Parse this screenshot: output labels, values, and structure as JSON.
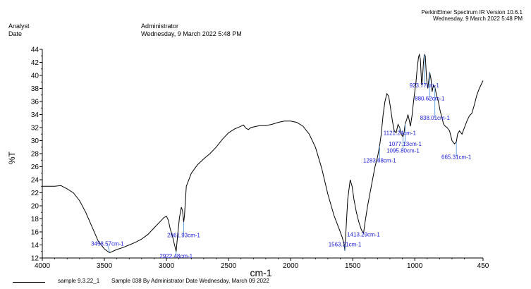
{
  "header": {
    "software": "PerkinElmer Spectrum IR Version 10.6.1",
    "timestamp": "Wednesday, 9 March 2022 5:48 PM",
    "analyst_label": "Analyst",
    "analyst_value": "Administrator",
    "date_label": "Date",
    "date_value": "Wednesday, 9 March 2022 5:48 PM"
  },
  "legend": {
    "sample_name": "sample 9.3.22_1",
    "description": "Sample 038 By Administrator Date Wednesday, March 09 2022"
  },
  "colors": {
    "line": "#000000",
    "annotation": "#1a1ad8",
    "leader": "#4a90d9"
  },
  "chart_data": {
    "type": "line",
    "xlabel": "cm-1",
    "ylabel": "%T",
    "xlim": [
      4000,
      450
    ],
    "ylim": [
      12,
      44
    ],
    "x_reversed": true,
    "xticks": [
      4000,
      3500,
      3000,
      2500,
      2000,
      1500,
      1000,
      450
    ],
    "yticks": [
      12,
      14,
      16,
      18,
      20,
      22,
      24,
      26,
      28,
      30,
      32,
      34,
      36,
      38,
      40,
      42,
      44
    ],
    "grid": false,
    "series": [
      {
        "name": "sample 9.3.22_1",
        "points": [
          [
            4000,
            23.0
          ],
          [
            3900,
            23.0
          ],
          [
            3850,
            23.1
          ],
          [
            3800,
            22.6
          ],
          [
            3750,
            22.0
          ],
          [
            3700,
            20.8
          ],
          [
            3650,
            19.0
          ],
          [
            3600,
            16.8
          ],
          [
            3550,
            14.6
          ],
          [
            3500,
            13.4
          ],
          [
            3458,
            12.8
          ],
          [
            3400,
            13.3
          ],
          [
            3350,
            13.6
          ],
          [
            3300,
            14.0
          ],
          [
            3250,
            14.4
          ],
          [
            3200,
            14.9
          ],
          [
            3150,
            15.6
          ],
          [
            3100,
            16.6
          ],
          [
            3050,
            17.6
          ],
          [
            3020,
            18.2
          ],
          [
            3000,
            18.4
          ],
          [
            2985,
            17.8
          ],
          [
            2970,
            16.5
          ],
          [
            2950,
            15.2
          ],
          [
            2935,
            14.0
          ],
          [
            2922,
            13.0
          ],
          [
            2910,
            15.5
          ],
          [
            2895,
            18.2
          ],
          [
            2880,
            19.8
          ],
          [
            2870,
            19.2
          ],
          [
            2861,
            17.5
          ],
          [
            2855,
            18.5
          ],
          [
            2840,
            23.0
          ],
          [
            2800,
            25.0
          ],
          [
            2750,
            26.3
          ],
          [
            2700,
            27.2
          ],
          [
            2650,
            28.0
          ],
          [
            2600,
            29.0
          ],
          [
            2550,
            30.2
          ],
          [
            2500,
            31.2
          ],
          [
            2450,
            31.8
          ],
          [
            2400,
            32.2
          ],
          [
            2380,
            32.4
          ],
          [
            2360,
            31.9
          ],
          [
            2340,
            31.7
          ],
          [
            2320,
            32.0
          ],
          [
            2300,
            32.1
          ],
          [
            2250,
            32.3
          ],
          [
            2200,
            32.3
          ],
          [
            2150,
            32.5
          ],
          [
            2100,
            32.8
          ],
          [
            2050,
            33.0
          ],
          [
            2000,
            33.0
          ],
          [
            1950,
            32.8
          ],
          [
            1900,
            32.2
          ],
          [
            1850,
            31.0
          ],
          [
            1800,
            29.0
          ],
          [
            1750,
            25.8
          ],
          [
            1700,
            21.8
          ],
          [
            1650,
            18.5
          ],
          [
            1610,
            16.5
          ],
          [
            1585,
            15.2
          ],
          [
            1570,
            14.2
          ],
          [
            1563,
            13.1
          ],
          [
            1555,
            16.0
          ],
          [
            1540,
            21.0
          ],
          [
            1520,
            24.0
          ],
          [
            1505,
            23.0
          ],
          [
            1490,
            21.0
          ],
          [
            1470,
            19.0
          ],
          [
            1450,
            17.5
          ],
          [
            1430,
            16.3
          ],
          [
            1413,
            15.8
          ],
          [
            1400,
            17.5
          ],
          [
            1380,
            20.0
          ],
          [
            1350,
            23.0
          ],
          [
            1320,
            26.0
          ],
          [
            1300,
            27.5
          ],
          [
            1283,
            29.2
          ],
          [
            1270,
            31.0
          ],
          [
            1255,
            34.0
          ],
          [
            1240,
            36.0
          ],
          [
            1225,
            37.2
          ],
          [
            1210,
            36.8
          ],
          [
            1195,
            35.0
          ],
          [
            1180,
            33.0
          ],
          [
            1165,
            31.5
          ],
          [
            1150,
            31.2
          ],
          [
            1135,
            32.5
          ],
          [
            1121,
            32.0
          ],
          [
            1110,
            31.0
          ],
          [
            1095,
            30.6
          ],
          [
            1085,
            31.4
          ],
          [
            1077,
            32.6
          ],
          [
            1065,
            33.2
          ],
          [
            1055,
            34.0
          ],
          [
            1045,
            33.2
          ],
          [
            1035,
            32.2
          ],
          [
            1021,
            34.0
          ],
          [
            1010,
            36.0
          ],
          [
            1000,
            37.5
          ],
          [
            990,
            39.0
          ],
          [
            980,
            41.2
          ],
          [
            970,
            42.8
          ],
          [
            963,
            43.2
          ],
          [
            955,
            42.5
          ],
          [
            945,
            38.5
          ],
          [
            938,
            39.5
          ],
          [
            930,
            42.0
          ],
          [
            923,
            43.2
          ],
          [
            915,
            43.0
          ],
          [
            905,
            39.5
          ],
          [
            895,
            38.0
          ],
          [
            880,
            40.5
          ],
          [
            870,
            39.5
          ],
          [
            860,
            37.5
          ],
          [
            850,
            38.5
          ],
          [
            838,
            38.2
          ],
          [
            825,
            37.0
          ],
          [
            810,
            36.0
          ],
          [
            795,
            34.5
          ],
          [
            780,
            33.5
          ],
          [
            770,
            32.6
          ],
          [
            760,
            32.3
          ],
          [
            740,
            32.0
          ],
          [
            720,
            31.5
          ],
          [
            700,
            30.0
          ],
          [
            680,
            29.5
          ],
          [
            665,
            29.8
          ],
          [
            655,
            31.0
          ],
          [
            640,
            31.5
          ],
          [
            620,
            31.0
          ],
          [
            600,
            32.0
          ],
          [
            580,
            33.0
          ],
          [
            560,
            33.8
          ],
          [
            540,
            34.2
          ],
          [
            520,
            35.5
          ],
          [
            500,
            37.0
          ],
          [
            480,
            38.0
          ],
          [
            460,
            38.8
          ],
          [
            450,
            39.2
          ]
        ]
      }
    ],
    "annotations": [
      {
        "label": "3458.57cm-1",
        "x": 3458,
        "y": 12.8,
        "dx": -3,
        "dy": 14.2
      },
      {
        "label": "2922.48cm-1",
        "x": 2922,
        "y": 13.0,
        "dx": 0,
        "dy": 12.3
      },
      {
        "label": "2861.93cm-1",
        "x": 2861,
        "y": 17.5,
        "dx": 0,
        "dy": 15.5
      },
      {
        "label": "1563.21cm-1",
        "x": 1563,
        "y": 13.1,
        "dx": 0,
        "dy": 14.1
      },
      {
        "label": "1413.29cm-1",
        "x": 1413,
        "y": 15.8,
        "dx": 0,
        "dy": 15.6
      },
      {
        "label": "1283.68cm-1",
        "x": 1283,
        "y": 29.2,
        "dx": 0,
        "dy": 27.0
      },
      {
        "label": "1121.24cm-1",
        "x": 1121,
        "y": 32.0,
        "dx": 0,
        "dy": 31.2
      },
      {
        "label": "1077.13cm-1",
        "x": 1077,
        "y": 32.6,
        "dx": 0,
        "dy": 29.5
      },
      {
        "label": "1095.80cm-1",
        "x": 1095,
        "y": 30.6,
        "dx": 0,
        "dy": 28.5
      },
      {
        "label": "923.77cm-1",
        "x": 923,
        "y": 43.2,
        "dx": 0,
        "dy": 38.5
      },
      {
        "label": "880.62cm-1",
        "x": 880,
        "y": 40.5,
        "dx": 0,
        "dy": 36.5
      },
      {
        "label": "838.01cm-1",
        "x": 838,
        "y": 38.2,
        "dx": 0,
        "dy": 33.5
      },
      {
        "label": "665.31cm-1",
        "x": 665,
        "y": 29.8,
        "dx": 0,
        "dy": 27.5
      }
    ]
  }
}
